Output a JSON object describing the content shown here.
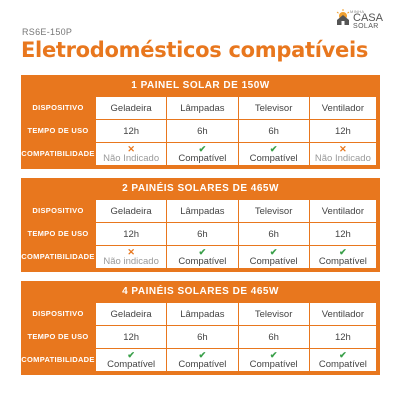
{
  "header": {
    "sku": "RS6E-150P",
    "title": "Eletrodomésticos compatíveis",
    "logo": {
      "top": "MINHA",
      "casa": "CASA",
      "solar": "SOLAR",
      "accent": "#e8771e"
    }
  },
  "row_labels": {
    "device": "DISPOSITIVO",
    "usage": "TEMPO DE USO",
    "compat": "COMPATIBILIDADE"
  },
  "colors": {
    "orange": "#e8771e",
    "green": "#3aa04a",
    "grey": "#999999"
  },
  "icons": {
    "ok": "✔",
    "no": "✕"
  },
  "blocks": [
    {
      "title": "1 PAINEL SOLAR DE 150W",
      "devices": [
        "Geladeira",
        "Lâmpadas",
        "Televisor",
        "Ventilador"
      ],
      "usage": [
        "12h",
        "6h",
        "6h",
        "12h"
      ],
      "compat": [
        {
          "status": "no",
          "text": "Não Indicado"
        },
        {
          "status": "ok",
          "text": "Compatível"
        },
        {
          "status": "ok",
          "text": "Compatível"
        },
        {
          "status": "no",
          "text": "Não Indicado"
        }
      ]
    },
    {
      "title": "2 PAINÉIS SOLARES DE 465W",
      "devices": [
        "Geladeira",
        "Lâmpadas",
        "Televisor",
        "Ventilador"
      ],
      "usage": [
        "12h",
        "6h",
        "6h",
        "12h"
      ],
      "compat": [
        {
          "status": "no",
          "text": "Não indicado"
        },
        {
          "status": "ok",
          "text": "Compatível"
        },
        {
          "status": "ok",
          "text": "Compatível"
        },
        {
          "status": "ok",
          "text": "Compatível"
        }
      ]
    },
    {
      "title": "4 PAINÉIS SOLARES DE 465W",
      "devices": [
        "Geladeira",
        "Lâmpadas",
        "Televisor",
        "Ventilador"
      ],
      "usage": [
        "12h",
        "6h",
        "6h",
        "12h"
      ],
      "compat": [
        {
          "status": "ok",
          "text": "Compatível"
        },
        {
          "status": "ok",
          "text": "Compatível"
        },
        {
          "status": "ok",
          "text": "Compatível"
        },
        {
          "status": "ok",
          "text": "Compatível"
        }
      ]
    }
  ]
}
